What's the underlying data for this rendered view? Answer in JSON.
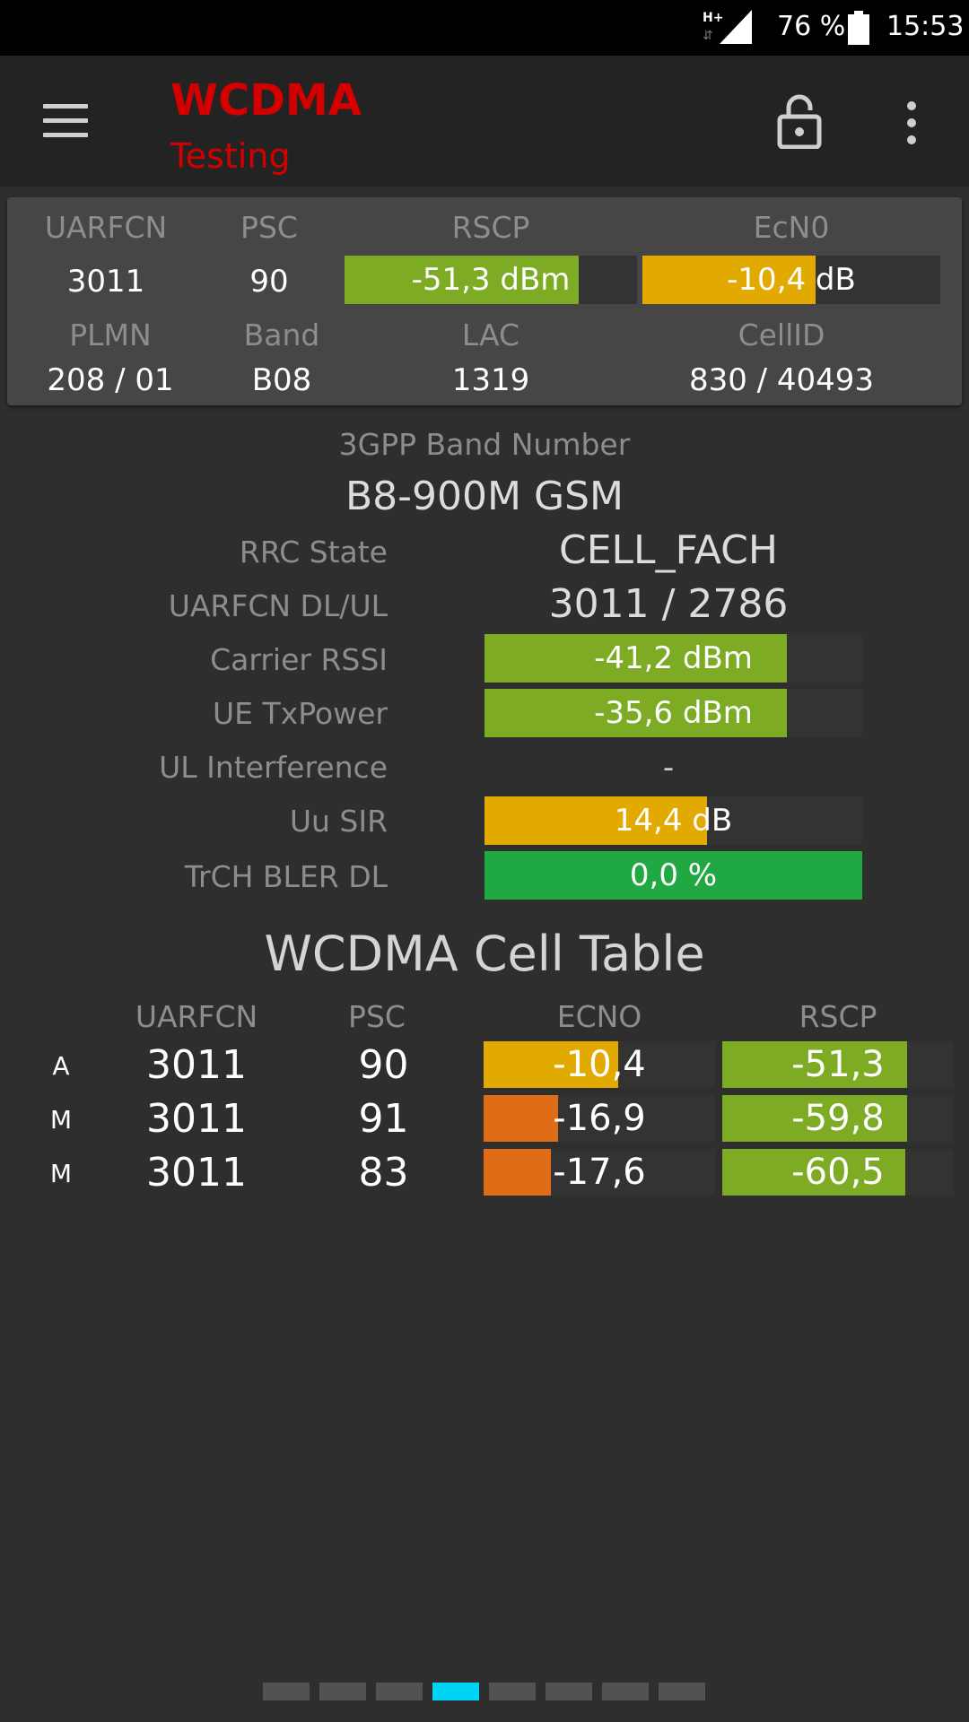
{
  "status_bar": {
    "network_type": "H+",
    "battery_percent": "76 %",
    "time": "15:53",
    "icons": [
      "signal-icon",
      "battery-icon"
    ]
  },
  "app_bar": {
    "title": "WCDMA",
    "subtitle": "Testing",
    "icons": [
      "menu-icon",
      "lock-icon",
      "more-vert-icon"
    ]
  },
  "summary": {
    "uarfcn_label": "UARFCN",
    "uarfcn": "3011",
    "psc_label": "PSC",
    "psc": "90",
    "rscp_label": "RSCP",
    "rscp": "-51,3 dBm",
    "rscp_level": 0.8,
    "ecn0_label": "EcN0",
    "ecn0": "-10,4 dB",
    "ecn0_level": 0.58,
    "plmn_label": "PLMN",
    "plmn": "208 / 01",
    "band_label": "Band",
    "band": "B08",
    "lac_label": "LAC",
    "lac": "1319",
    "cellid_label": "CellID",
    "cellid": "830 / 40493"
  },
  "details": {
    "band_number_label": "3GPP Band Number",
    "band_number": "B8-900M GSM",
    "rrc_state_label": "RRC State",
    "rrc_state": "CELL_FACH",
    "uarfcn_dlul_label": "UARFCN DL/UL",
    "uarfcn_dlul": "3011 / 2786",
    "carrier_rssi_label": "Carrier RSSI",
    "carrier_rssi": "-41,2 dBm",
    "carrier_rssi_level": 0.8,
    "ue_txpower_label": "UE TxPower",
    "ue_txpower": "-35,6 dBm",
    "ue_txpower_level": 0.8,
    "ul_interference_label": "UL Interference",
    "ul_interference": "-",
    "uu_sir_label": "Uu SIR",
    "uu_sir": "14,4 dB",
    "uu_sir_level": 0.59,
    "trch_bler_label": "TrCH BLER DL",
    "trch_bler": "0,0 %",
    "trch_bler_level": 1.0
  },
  "cell_table": {
    "title": "WCDMA Cell Table",
    "headers": [
      "UARFCN",
      "PSC",
      "ECNO",
      "RSCP"
    ],
    "rows": [
      {
        "mode": "A",
        "uarfcn": "3011",
        "psc": "90",
        "ecno": "-10,4",
        "ecno_level": 0.58,
        "ecno_color": "#e2aa00",
        "rscp": "-51,3",
        "rscp_level": 0.8,
        "rscp_color": "#7dab24"
      },
      {
        "mode": "M",
        "uarfcn": "3011",
        "psc": "91",
        "ecno": "-16,9",
        "ecno_level": 0.32,
        "ecno_color": "#e06c18",
        "rscp": "-59,8",
        "rscp_level": 0.8,
        "rscp_color": "#7dab24"
      },
      {
        "mode": "M",
        "uarfcn": "3011",
        "psc": "83",
        "ecno": "-17,6",
        "ecno_level": 0.29,
        "ecno_color": "#e06c18",
        "rscp": "-60,5",
        "rscp_level": 0.79,
        "rscp_color": "#7dab24"
      }
    ]
  },
  "pager": {
    "count": 8,
    "active_index": 3
  },
  "colors": {
    "accent_red": "#d40000",
    "good_green": "#7dab24",
    "warn_amber": "#e2aa00",
    "bad_orange": "#e06c18",
    "ok_green": "#20a843",
    "pager_active": "#00d4f4"
  }
}
